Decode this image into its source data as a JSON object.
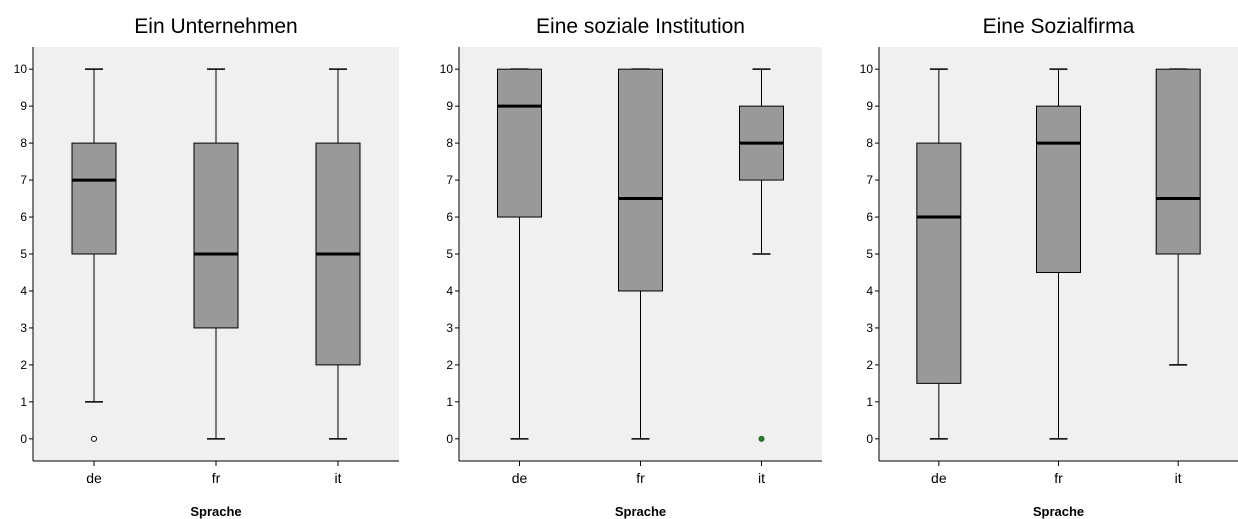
{
  "chart_data": [
    {
      "type": "boxplot",
      "title": "Ein Unternehmen",
      "xlabel": "Sprache",
      "ylabel": "",
      "ylim": [
        -0.6,
        10.6
      ],
      "yticks": [
        0,
        1,
        2,
        3,
        4,
        5,
        6,
        7,
        8,
        9,
        10
      ],
      "categories": [
        "de",
        "fr",
        "it"
      ],
      "boxes": [
        {
          "min": 1,
          "q1": 5,
          "median": 7,
          "q3": 8,
          "max": 10,
          "outliers": [
            0
          ]
        },
        {
          "min": 0,
          "q1": 3,
          "median": 5,
          "q3": 8,
          "max": 10,
          "outliers": []
        },
        {
          "min": 0,
          "q1": 2,
          "median": 5,
          "q3": 8,
          "max": 10,
          "outliers": []
        }
      ]
    },
    {
      "type": "boxplot",
      "title": "Eine soziale Institution",
      "xlabel": "Sprache",
      "ylabel": "",
      "ylim": [
        -0.6,
        10.6
      ],
      "yticks": [
        0,
        1,
        2,
        3,
        4,
        5,
        6,
        7,
        8,
        9,
        10
      ],
      "categories": [
        "de",
        "fr",
        "it"
      ],
      "boxes": [
        {
          "min": 0,
          "q1": 6,
          "median": 9,
          "q3": 10,
          "max": 10,
          "outliers": []
        },
        {
          "min": 0,
          "q1": 4,
          "median": 6.5,
          "q3": 10,
          "max": 10,
          "outliers": []
        },
        {
          "min": 5,
          "q1": 7,
          "median": 8,
          "q3": 9,
          "max": 10,
          "outliers": [
            0
          ]
        }
      ]
    },
    {
      "type": "boxplot",
      "title": "Eine Sozialfirma",
      "xlabel": "Sprache",
      "ylabel": "",
      "ylim": [
        -0.6,
        10.6
      ],
      "yticks": [
        0,
        1,
        2,
        3,
        4,
        5,
        6,
        7,
        8,
        9,
        10
      ],
      "categories": [
        "de",
        "fr",
        "it"
      ],
      "boxes": [
        {
          "min": 0,
          "q1": 1.5,
          "median": 6,
          "q3": 8,
          "max": 10,
          "outliers": []
        },
        {
          "min": 0,
          "q1": 4.5,
          "median": 8,
          "q3": 9,
          "max": 10,
          "outliers": []
        },
        {
          "min": 2,
          "q1": 5,
          "median": 6.5,
          "q3": 10,
          "max": 10,
          "outliers": []
        }
      ]
    }
  ],
  "colors": {
    "box_fill": "#999999",
    "plot_background": "#f0f0f0",
    "outlier_it_soziale_institution": "#2e7d32"
  }
}
